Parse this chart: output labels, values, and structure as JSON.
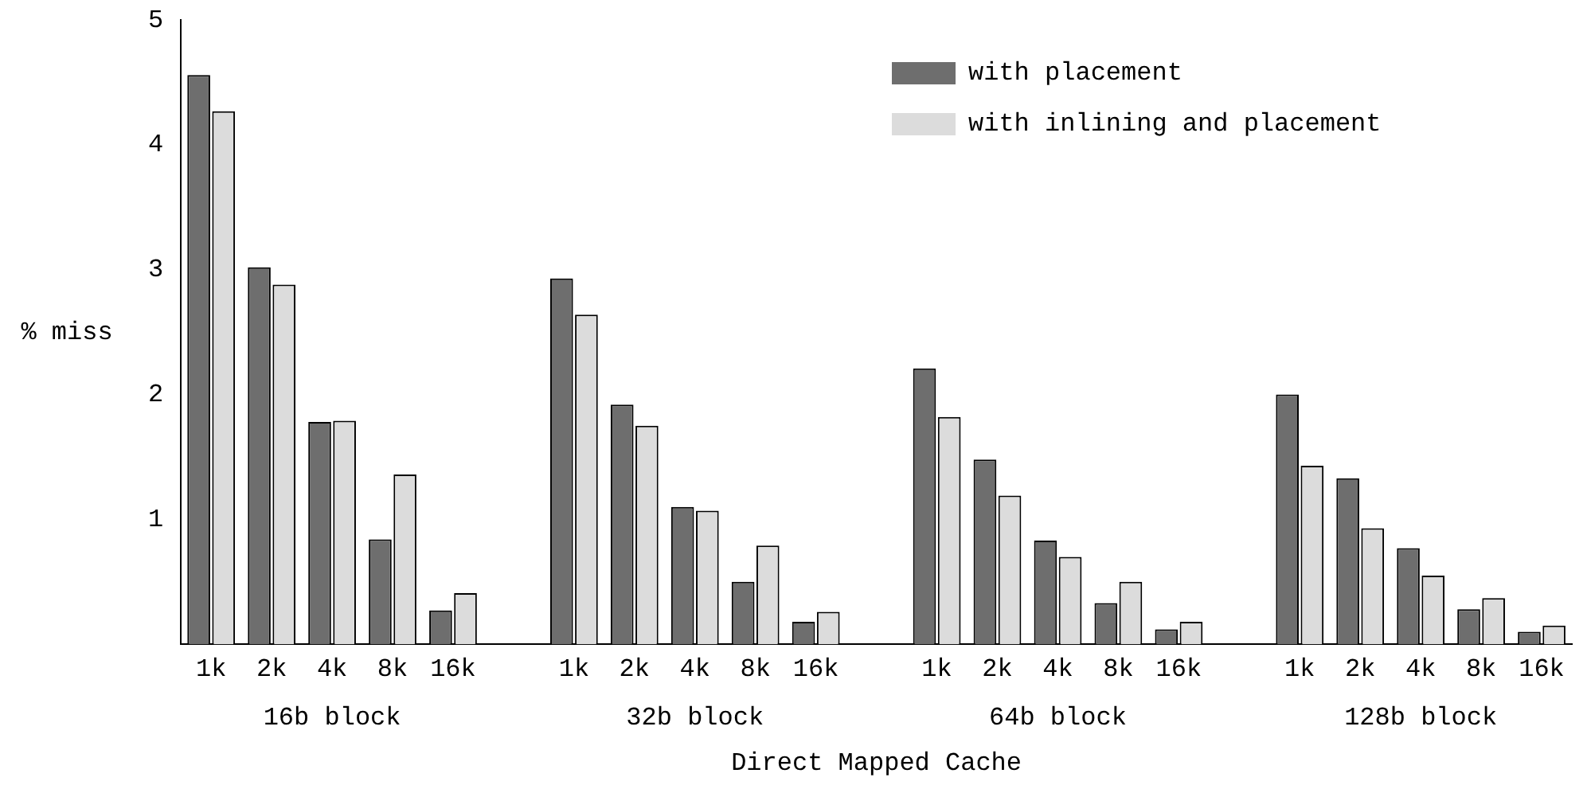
{
  "chart_data": {
    "type": "bar",
    "xlabel": "Direct Mapped Cache",
    "ylabel": "% miss",
    "categories": [
      "1k",
      "2k",
      "4k",
      "8k",
      "16k",
      null,
      "1k",
      "2k",
      "4k",
      "8k",
      "16k",
      null,
      "1k",
      "2k",
      "4k",
      "8k",
      "16k",
      null,
      "1k",
      "2k",
      "4k",
      "8k",
      "16k"
    ],
    "annotations": [
      "16b block",
      "32b block",
      "64b block",
      "128b block"
    ],
    "series": [
      {
        "name": "with placement",
        "color": "#6e6e6e",
        "values": [
          4.56,
          3.02,
          1.78,
          0.84,
          0.27,
          null,
          2.93,
          1.92,
          1.1,
          0.5,
          0.18,
          null,
          2.21,
          1.48,
          0.83,
          0.33,
          0.12,
          null,
          2.0,
          1.33,
          0.77,
          0.28,
          0.1
        ]
      },
      {
        "name": "with inlining and placement",
        "color": "#dcdcdc",
        "values": [
          4.27,
          2.88,
          1.79,
          1.36,
          0.41,
          null,
          2.64,
          1.75,
          1.07,
          0.79,
          0.26,
          null,
          1.82,
          1.19,
          0.7,
          0.5,
          0.18,
          null,
          1.43,
          0.93,
          0.55,
          0.37,
          0.15
        ]
      }
    ],
    "ylim": [
      0,
      5
    ],
    "yticks": [
      1,
      2,
      3,
      4,
      5
    ],
    "grid": false,
    "legend": "top right"
  }
}
